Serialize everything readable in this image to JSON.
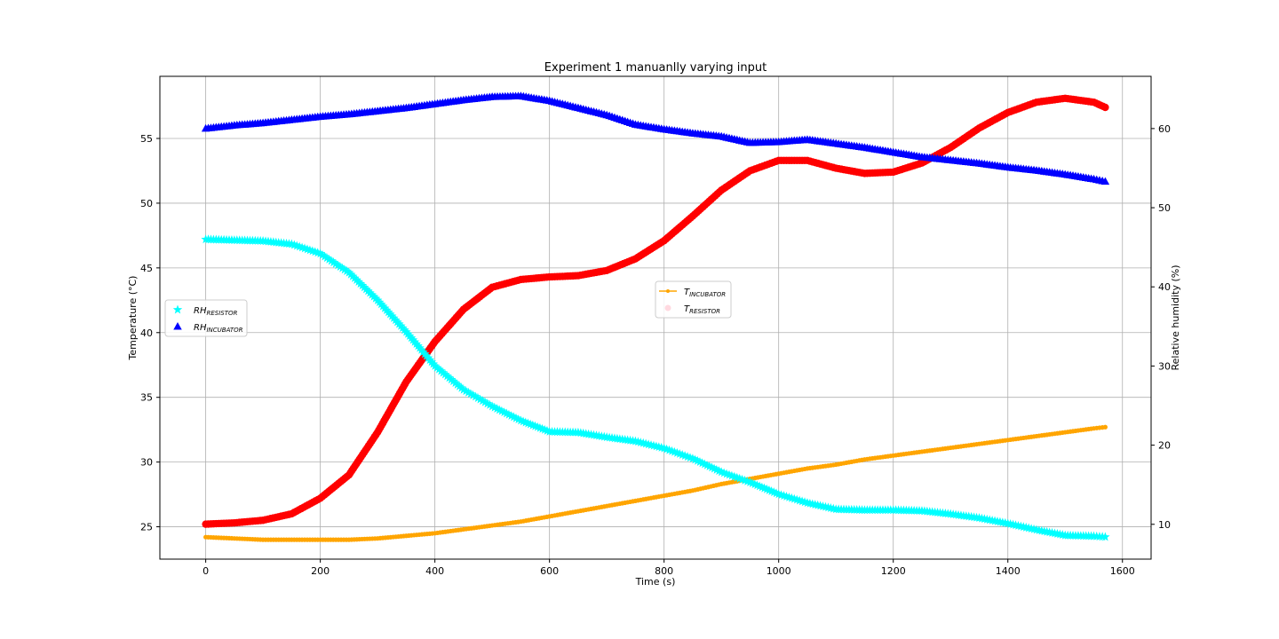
{
  "chart_data": {
    "type": "scatter",
    "title": "Experiment 1 manuanlly varying input",
    "xlabel": "Time (s)",
    "ylabel_left": "Temperature (°C)",
    "ylabel_right": "Relative humidity (%)",
    "xlim": [
      -80,
      1650
    ],
    "ylim_left": [
      22.5,
      59.8
    ],
    "ylim_right": [
      5.6,
      66.6
    ],
    "xticks": [
      "0",
      "200",
      "400",
      "600",
      "800",
      "1000",
      "1200",
      "1400",
      "1600"
    ],
    "xtick_values": [
      0,
      200,
      400,
      600,
      800,
      1000,
      1200,
      1400,
      1600
    ],
    "yticks_left": [
      "25",
      "30",
      "35",
      "40",
      "45",
      "50",
      "55"
    ],
    "ytick_values_left": [
      25,
      30,
      35,
      40,
      45,
      50,
      55
    ],
    "yticks_right": [
      "10",
      "20",
      "30",
      "40",
      "50",
      "60"
    ],
    "ytick_values_right": [
      10,
      20,
      30,
      40,
      50,
      60
    ],
    "grid": true,
    "legends": [
      {
        "placement": "center-left",
        "entries": [
          {
            "base": "RH",
            "sub": "RESISTOR",
            "marker": "star",
            "color": "#00ffff"
          },
          {
            "base": "RH",
            "sub": "INCUBATOR",
            "marker": "triangle",
            "color": "#0000ff"
          }
        ]
      },
      {
        "placement": "center",
        "entries": [
          {
            "base": "T",
            "sub": "INCUBATOR",
            "marker": "line-dot",
            "color": "#ffa500"
          },
          {
            "base": "T",
            "sub": "RESISTOR",
            "marker": "circle-faint",
            "color": "#ffc0cb"
          }
        ]
      }
    ],
    "series": [
      {
        "name": "T_RESISTOR",
        "axis": "left",
        "color": "#ff0000",
        "marker": "circle",
        "x": [
          0,
          50,
          100,
          150,
          200,
          250,
          300,
          350,
          400,
          450,
          500,
          550,
          600,
          650,
          700,
          750,
          800,
          850,
          900,
          950,
          1000,
          1050,
          1100,
          1150,
          1200,
          1250,
          1300,
          1350,
          1400,
          1450,
          1500,
          1550,
          1570
        ],
        "y": [
          25.2,
          25.3,
          25.5,
          26.0,
          27.2,
          29.0,
          32.3,
          36.2,
          39.3,
          41.8,
          43.5,
          44.1,
          44.3,
          44.4,
          44.8,
          45.7,
          47.1,
          49.0,
          51.0,
          52.5,
          53.3,
          53.3,
          52.7,
          52.3,
          52.4,
          53.1,
          54.3,
          55.8,
          57.0,
          57.8,
          58.1,
          57.8,
          57.4
        ]
      },
      {
        "name": "T_INCUBATOR",
        "axis": "left",
        "color": "#ffa500",
        "marker": "line-dot",
        "x": [
          0,
          50,
          100,
          150,
          200,
          250,
          300,
          350,
          400,
          450,
          500,
          550,
          600,
          650,
          700,
          750,
          800,
          850,
          900,
          950,
          1000,
          1050,
          1100,
          1150,
          1200,
          1250,
          1300,
          1350,
          1400,
          1450,
          1500,
          1550,
          1570
        ],
        "y": [
          24.2,
          24.1,
          24.0,
          24.0,
          24.0,
          24.0,
          24.1,
          24.3,
          24.5,
          24.8,
          25.1,
          25.4,
          25.8,
          26.2,
          26.6,
          27.0,
          27.4,
          27.8,
          28.3,
          28.7,
          29.1,
          29.5,
          29.8,
          30.2,
          30.5,
          30.8,
          31.1,
          31.4,
          31.7,
          32.0,
          32.3,
          32.6,
          32.7
        ]
      },
      {
        "name": "RH_RESISTOR",
        "axis": "right",
        "color": "#00ffff",
        "marker": "star",
        "x": [
          0,
          50,
          100,
          150,
          200,
          250,
          300,
          350,
          400,
          450,
          500,
          550,
          600,
          650,
          700,
          750,
          800,
          850,
          900,
          950,
          1000,
          1050,
          1100,
          1150,
          1200,
          1250,
          1300,
          1350,
          1400,
          1450,
          1500,
          1550,
          1570
        ],
        "y": [
          46.0,
          45.9,
          45.8,
          45.4,
          44.2,
          41.8,
          38.3,
          34.3,
          30.0,
          27.0,
          24.9,
          23.1,
          21.7,
          21.6,
          21.0,
          20.5,
          19.6,
          18.3,
          16.6,
          15.3,
          13.8,
          12.7,
          11.9,
          11.8,
          11.8,
          11.7,
          11.3,
          10.8,
          10.1,
          9.3,
          8.6,
          8.5,
          8.4
        ]
      },
      {
        "name": "RH_INCUBATOR",
        "axis": "right",
        "color": "#0000ff",
        "marker": "triangle",
        "x": [
          0,
          50,
          100,
          150,
          200,
          250,
          300,
          350,
          400,
          450,
          500,
          550,
          600,
          650,
          700,
          750,
          800,
          850,
          900,
          950,
          1000,
          1050,
          1100,
          1150,
          1200,
          1250,
          1300,
          1350,
          1400,
          1450,
          1500,
          1550,
          1570
        ],
        "y": [
          60.0,
          60.4,
          60.7,
          61.1,
          61.5,
          61.8,
          62.2,
          62.6,
          63.1,
          63.6,
          64.0,
          64.1,
          63.5,
          62.6,
          61.7,
          60.5,
          59.9,
          59.4,
          59.0,
          58.2,
          58.3,
          58.6,
          58.1,
          57.6,
          57.0,
          56.4,
          56.0,
          55.6,
          55.1,
          54.7,
          54.2,
          53.6,
          53.3
        ]
      }
    ]
  }
}
